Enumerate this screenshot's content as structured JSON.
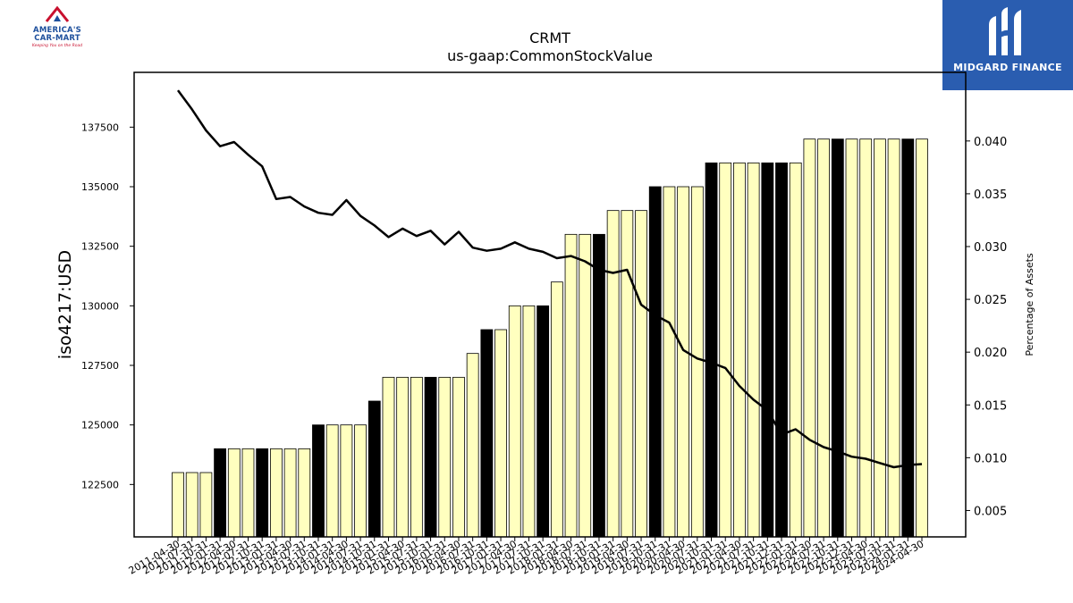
{
  "logos": {
    "left": {
      "line1": "AMERICA'S",
      "line2": "CAR-MART",
      "tagline": "Keeping You on the Road"
    },
    "right": {
      "name": "MIDGARD FINANCE"
    }
  },
  "colors": {
    "bar_light": "#ffffbf",
    "bar_dark": "#000000",
    "line": "#000000",
    "axis": "#000000"
  },
  "chart_data": {
    "type": "bar",
    "title": "CRMT",
    "subtitle": "us-gaap:CommonStockValue",
    "ylabel": "iso4217:USD",
    "y2label": "Percentage of Assets",
    "ylim": [
      120300,
      139800
    ],
    "yticks": [
      122500,
      125000,
      127500,
      130000,
      132500,
      135000,
      137500
    ],
    "y2lim": [
      0.0025,
      0.0465
    ],
    "y2ticks": [
      0.005,
      0.01,
      0.015,
      0.02,
      0.025,
      0.03,
      0.035,
      0.04
    ],
    "y2ticks_visible_labels": [
      "0.005",
      "0.010",
      "0.015",
      "0.020",
      "0.025",
      "0.030",
      "0.035",
      "0.040"
    ],
    "categories": [
      "2011-04-30",
      "2011-07-31",
      "2011-10-31",
      "2012-01-31",
      "2012-04-30",
      "2012-07-31",
      "2012-10-31",
      "2013-01-31",
      "2013-04-30",
      "2013-07-31",
      "2013-10-31",
      "2014-01-31",
      "2014-04-30",
      "2014-07-31",
      "2014-10-31",
      "2015-01-31",
      "2015-04-30",
      "2015-07-31",
      "2015-10-31",
      "2016-01-31",
      "2016-04-30",
      "2016-07-31",
      "2016-10-31",
      "2017-01-31",
      "2017-04-30",
      "2017-07-31",
      "2017-10-31",
      "2018-01-31",
      "2018-04-30",
      "2018-07-31",
      "2018-10-31",
      "2019-01-31",
      "2019-04-30",
      "2019-07-31",
      "2019-10-31",
      "2020-01-31",
      "2020-04-30",
      "2020-07-31",
      "2020-10-31",
      "2021-01-31",
      "2021-04-30",
      "2021-07-31",
      "2021-10-31",
      "2021-12-31",
      "2022-01-31",
      "2022-04-30",
      "2022-07-31",
      "2022-10-31",
      "2022-12-31",
      "2023-04-30",
      "2023-07-31",
      "2023-10-31",
      "2024-01-31",
      "2024-04-30"
    ],
    "series": [
      {
        "type": "bar",
        "values": [
          123000,
          123000,
          123000,
          124000,
          124000,
          124000,
          124000,
          124000,
          124000,
          124000,
          125000,
          125000,
          125000,
          125000,
          126000,
          127000,
          127000,
          127000,
          127000,
          127000,
          127000,
          128000,
          129000,
          129000,
          130000,
          130000,
          130000,
          131000,
          133000,
          133000,
          133000,
          134000,
          134000,
          134000,
          135000,
          135000,
          135000,
          135000,
          136000,
          136000,
          136000,
          136000,
          136000,
          136000,
          136000,
          137000,
          137000,
          137000,
          137000,
          137000,
          137000,
          137000,
          137000,
          137000
        ],
        "highlight": [
          false,
          false,
          false,
          true,
          false,
          false,
          true,
          false,
          false,
          false,
          true,
          false,
          false,
          false,
          true,
          false,
          false,
          false,
          true,
          false,
          false,
          false,
          true,
          false,
          false,
          false,
          true,
          false,
          false,
          false,
          true,
          false,
          false,
          false,
          true,
          false,
          false,
          false,
          true,
          false,
          false,
          false,
          true,
          true,
          false,
          false,
          false,
          true,
          false,
          false,
          false,
          false,
          true,
          false
        ]
      },
      {
        "type": "line",
        "axis": "right",
        "values": [
          0.0448,
          0.043,
          0.041,
          0.0395,
          0.0399,
          0.0387,
          0.0376,
          0.0345,
          0.0347,
          0.0338,
          0.0332,
          0.033,
          0.0344,
          0.0329,
          0.032,
          0.0309,
          0.0317,
          0.031,
          0.0315,
          0.0302,
          0.0314,
          0.0299,
          0.0296,
          0.0298,
          0.0304,
          0.0298,
          0.0295,
          0.0289,
          0.0291,
          0.0286,
          0.0278,
          0.0275,
          0.0278,
          0.0245,
          0.0235,
          0.0228,
          0.0202,
          0.0194,
          0.019,
          0.0185,
          0.0168,
          0.0155,
          0.0145,
          0.0122,
          0.0127,
          0.0117,
          0.011,
          0.0106,
          0.0101,
          0.0099,
          0.0095,
          0.0091,
          0.0093,
          0.0094
        ]
      }
    ]
  }
}
